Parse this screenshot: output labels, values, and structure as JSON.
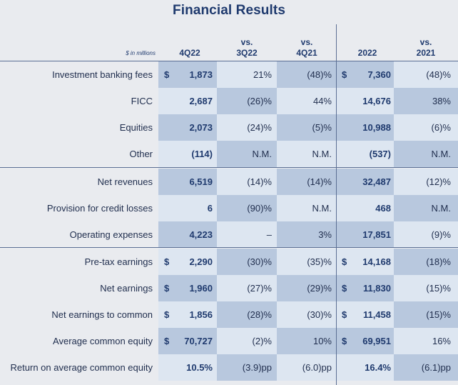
{
  "title": "Financial Results",
  "units_label": "$ in millions",
  "columns": [
    {
      "line1": "",
      "line2": "4Q22"
    },
    {
      "line1": "vs.",
      "line2": "3Q22"
    },
    {
      "line1": "vs.",
      "line2": "4Q21"
    },
    {
      "line1": "",
      "line2": "2022"
    },
    {
      "line1": "vs.",
      "line2": "2021"
    }
  ],
  "rows": [
    {
      "label": "Investment banking fees",
      "cur1": "$",
      "v1": "1,873",
      "p1": "21%",
      "p2": "(48)%",
      "cur2": "$",
      "v2": "7,360",
      "p3": "(48)%"
    },
    {
      "label": "FICC",
      "cur1": "",
      "v1": "2,687",
      "p1": "(26)%",
      "p2": "44%",
      "cur2": "",
      "v2": "14,676",
      "p3": "38%"
    },
    {
      "label": "Equities",
      "cur1": "",
      "v1": "2,073",
      "p1": "(24)%",
      "p2": "(5)%",
      "cur2": "",
      "v2": "10,988",
      "p3": "(6)%"
    },
    {
      "label": "Other",
      "cur1": "",
      "v1": "(114)",
      "p1": "N.M.",
      "p2": "N.M.",
      "cur2": "",
      "v2": "(537)",
      "p3": "N.M."
    },
    {
      "label": "Net revenues",
      "cur1": "",
      "v1": "6,519",
      "p1": "(14)%",
      "p2": "(14)%",
      "cur2": "",
      "v2": "32,487",
      "p3": "(12)%"
    },
    {
      "label": "Provision for credit losses",
      "cur1": "",
      "v1": "6",
      "p1": "(90)%",
      "p2": "N.M.",
      "cur2": "",
      "v2": "468",
      "p3": "N.M."
    },
    {
      "label": "Operating expenses",
      "cur1": "",
      "v1": "4,223",
      "p1": "–",
      "p2": "3%",
      "cur2": "",
      "v2": "17,851",
      "p3": "(9)%"
    },
    {
      "label": "Pre-tax earnings",
      "cur1": "$",
      "v1": "2,290",
      "p1": "(30)%",
      "p2": "(35)%",
      "cur2": "$",
      "v2": "14,168",
      "p3": "(18)%"
    },
    {
      "label": "Net earnings",
      "cur1": "$",
      "v1": "1,960",
      "p1": "(27)%",
      "p2": "(29)%",
      "cur2": "$",
      "v2": "11,830",
      "p3": "(15)%"
    },
    {
      "label": "Net earnings to common",
      "cur1": "$",
      "v1": "1,856",
      "p1": "(28)%",
      "p2": "(30)%",
      "cur2": "$",
      "v2": "11,458",
      "p3": "(15)%"
    },
    {
      "label": "Average common equity",
      "cur1": "$",
      "v1": "70,727",
      "p1": "(2)%",
      "p2": "10%",
      "cur2": "$",
      "v2": "69,951",
      "p3": "16%"
    },
    {
      "label": "Return on average common equity",
      "cur1": "",
      "v1": "10.5%",
      "p1": "(3.9)pp",
      "p2": "(6.0)pp",
      "cur2": "",
      "v2": "16.4%",
      "p3": "(6.1)pp"
    }
  ]
}
